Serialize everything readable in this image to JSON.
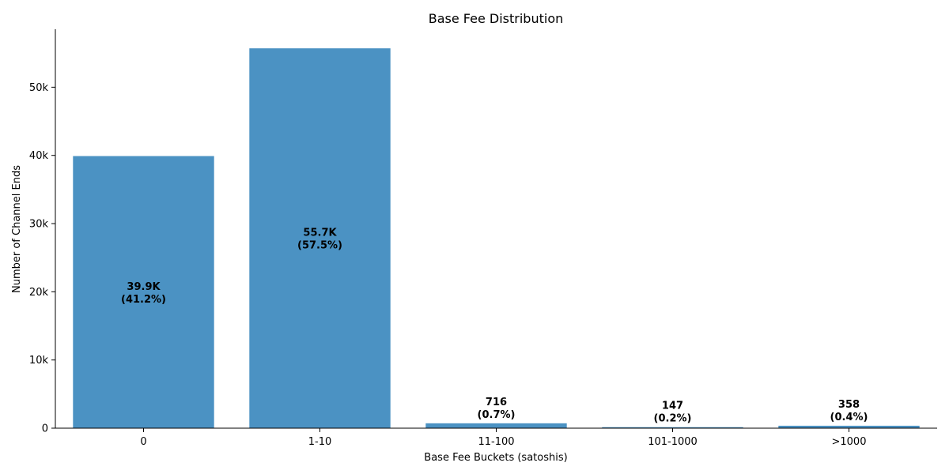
{
  "chart_data": {
    "type": "bar",
    "title": "Base Fee Distribution",
    "xlabel": "Base Fee Buckets (satoshis)",
    "ylabel": "Number of Channel Ends",
    "categories": [
      "0",
      "1-10",
      "11-100",
      "101-1000",
      ">1000"
    ],
    "values": [
      39900,
      55700,
      716,
      147,
      358
    ],
    "value_labels": [
      "39.9K",
      "55.7K",
      "716",
      "147",
      "358"
    ],
    "percent_labels": [
      "(41.2%)",
      "(57.5%)",
      "(0.7%)",
      "(0.2%)",
      "(0.4%)"
    ],
    "ylim": [
      0,
      58500
    ],
    "yticks": [
      0,
      10000,
      20000,
      30000,
      40000,
      50000
    ],
    "ytick_labels": [
      "0",
      "10k",
      "20k",
      "30k",
      "40k",
      "50k"
    ],
    "bar_color": "#4b92c3",
    "grid": false,
    "legend": "none"
  }
}
